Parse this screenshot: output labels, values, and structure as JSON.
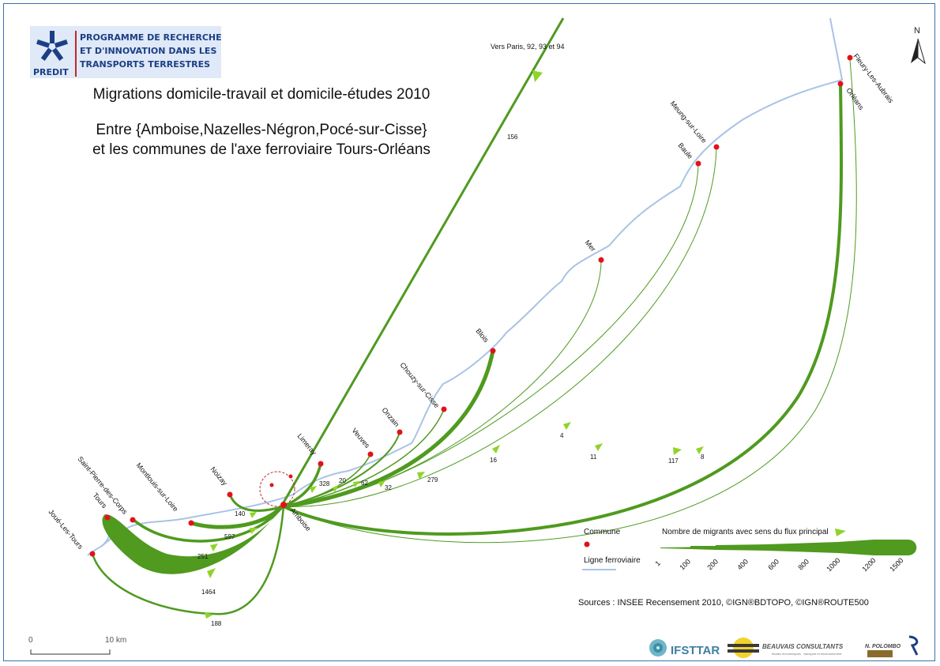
{
  "header": {
    "logo": {
      "acronym": "PREDIT",
      "lines": [
        "PROGRAMME DE RECHERCHE",
        "ET D'INNOVATION DANS LES",
        "TRANSPORTS TERRESTRES"
      ]
    },
    "title": "Migrations domicile-travail et domicile-études 2010",
    "subtitle_line1": "Entre {Amboise,Nazelles-Négron,Pocé-sur-Cisse}",
    "subtitle_line2": "et les communes de l'axe ferroviaire Tours-Orléans"
  },
  "north_label": "N",
  "communes": [
    {
      "name": "Fleury-Les-Aubrais"
    },
    {
      "name": "Orléans"
    },
    {
      "name": "Meung-sur-Loire"
    },
    {
      "name": "Baule"
    },
    {
      "name": "Mer"
    },
    {
      "name": "Blois"
    },
    {
      "name": "Chouzy-sur-Cisse"
    },
    {
      "name": "Onzain"
    },
    {
      "name": "Veuves"
    },
    {
      "name": "Limeray"
    },
    {
      "name": "Noizay"
    },
    {
      "name": "Montlouis-sur-Loire"
    },
    {
      "name": "Saint-Pierre-des-Corps"
    },
    {
      "name": "Tours"
    },
    {
      "name": "Joué-Les-Tours"
    },
    {
      "name": "Amboise"
    }
  ],
  "paris_label": "Vers Paris, 92, 93 et 94",
  "flows": [
    {
      "to": "Vers Paris, 92, 93 et 94",
      "value": 156
    },
    {
      "to": "Orléans",
      "value": 117
    },
    {
      "to": "Fleury-Les-Aubrais",
      "value": 8
    },
    {
      "to": "Meung-sur-Loire",
      "value": 11
    },
    {
      "to": "Baule",
      "value": 4
    },
    {
      "to": "Mer",
      "value": 16
    },
    {
      "to": "Blois",
      "value": 279
    },
    {
      "to": "Chouzy-sur-Cisse",
      "value": 32
    },
    {
      "to": "Onzain",
      "value": 62
    },
    {
      "to": "Veuves",
      "value": 20
    },
    {
      "to": "Limeray",
      "value": 328
    },
    {
      "to": "Noizay",
      "value": 140
    },
    {
      "to": "Montlouis-sur-Loire",
      "value": 597
    },
    {
      "to": "Saint-Pierre-des-Corps",
      "value": 251
    },
    {
      "to": "Tours",
      "value": 1464
    },
    {
      "to": "Joué-Les-Tours",
      "value": 188
    }
  ],
  "legend": {
    "commune_label": "Commune",
    "rail_label": "Ligne ferroviaire",
    "flow_label": "Nombre de migrants avec sens du flux principal",
    "scale_ticks": [
      "1",
      "100",
      "200",
      "400",
      "600",
      "800",
      "1000",
      "1200",
      "1500"
    ]
  },
  "sources": "Sources : INSEE Recensement  2010,  ©IGN®BDTOPO, ©IGN®ROUTE500",
  "scalebar": {
    "start": "0",
    "end": "10 km"
  },
  "partners": {
    "ifsttar": "IFSTTAR",
    "beauvais": "BEAUVAIS CONSULTANTS",
    "beauvais_sub": "études économiques · transport et environnement",
    "polombo": "N. POLOMBO"
  },
  "colors": {
    "flow": "#4f9a1f",
    "arrow": "#8fd42a",
    "commune": "#e2121b",
    "rail": "#a9c3e6",
    "logo_text": "#1c3f84",
    "frame": "#3d6fb0"
  }
}
